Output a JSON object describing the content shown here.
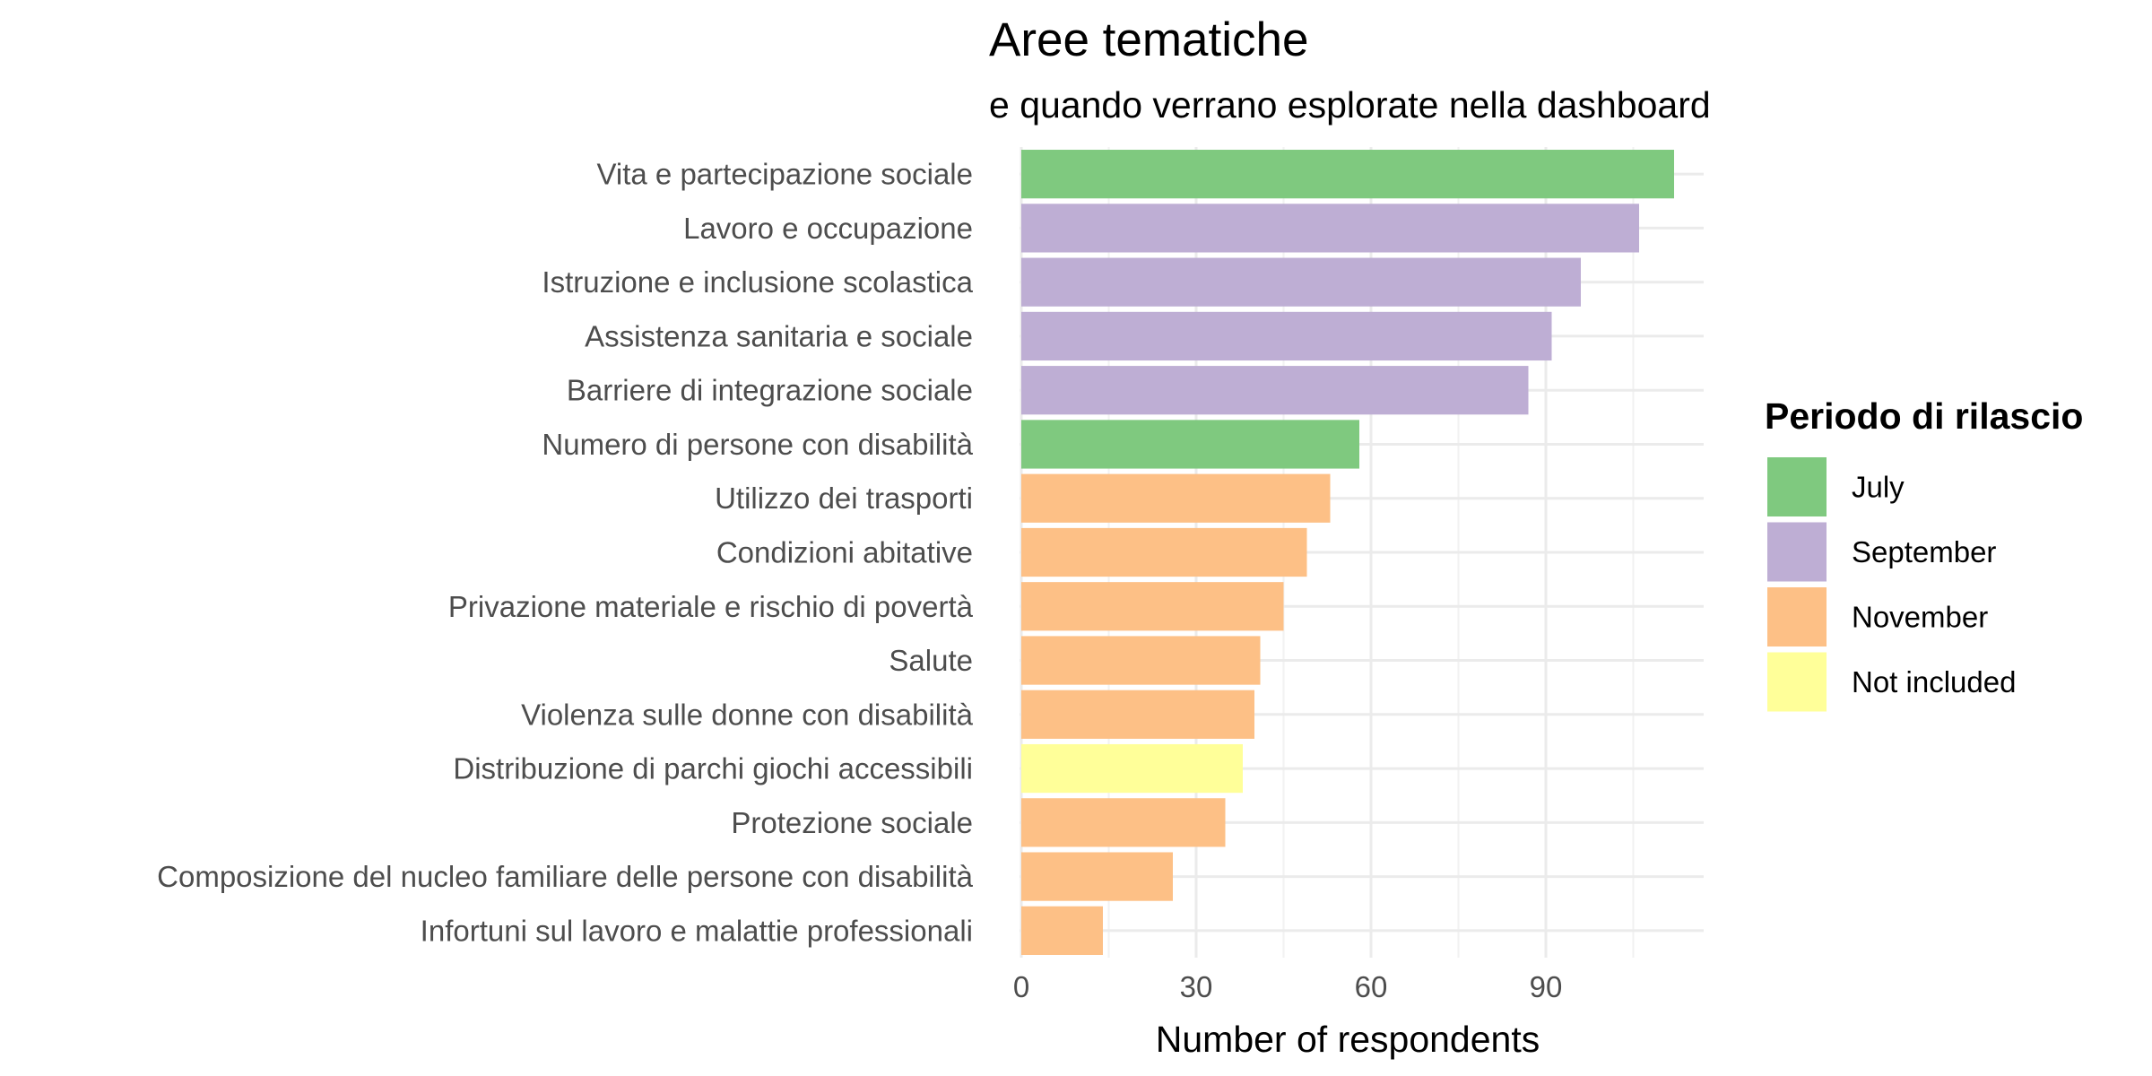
{
  "chart_data": {
    "type": "bar",
    "orientation": "horizontal",
    "title": "Aree tematiche",
    "subtitle": "e quando verrano esplorate nella dashboard",
    "xlabel": "Number of respondents",
    "ylabel": "",
    "xlim": [
      0,
      117
    ],
    "xticks": [
      0,
      30,
      60,
      90
    ],
    "grid": true,
    "legend": {
      "title": "Periodo di rilascio",
      "placement": "right",
      "entries": [
        {
          "label": "July",
          "color": "#7fc97f"
        },
        {
          "label": "September",
          "color": "#beaed4"
        },
        {
          "label": "November",
          "color": "#fdc086"
        },
        {
          "label": "Not included",
          "color": "#ffff99"
        }
      ]
    },
    "bars": [
      {
        "category": "Vita e partecipazione sociale",
        "value": 112,
        "group": "July"
      },
      {
        "category": "Lavoro e occupazione",
        "value": 106,
        "group": "September"
      },
      {
        "category": "Istruzione e inclusione scolastica",
        "value": 96,
        "group": "September"
      },
      {
        "category": "Assistenza sanitaria e sociale",
        "value": 91,
        "group": "September"
      },
      {
        "category": "Barriere di integrazione sociale",
        "value": 87,
        "group": "September"
      },
      {
        "category": "Numero di persone con disabilità",
        "value": 58,
        "group": "July"
      },
      {
        "category": "Utilizzo dei trasporti",
        "value": 53,
        "group": "November"
      },
      {
        "category": "Condizioni abitative ",
        "value": 49,
        "group": "November"
      },
      {
        "category": "Privazione materiale e rischio di povertà",
        "value": 45,
        "group": "November"
      },
      {
        "category": "Salute",
        "value": 41,
        "group": "November"
      },
      {
        "category": "Violenza sulle donne con disabilità",
        "value": 40,
        "group": "November"
      },
      {
        "category": "Distribuzione di parchi giochi accessibili",
        "value": 38,
        "group": "Not included"
      },
      {
        "category": "Protezione sociale",
        "value": 35,
        "group": "November"
      },
      {
        "category": "Composizione del nucleo familiare delle persone con disabilità",
        "value": 26,
        "group": "November"
      },
      {
        "category": "Infortuni sul lavoro e malattie professionali",
        "value": 14,
        "group": "November"
      }
    ]
  }
}
